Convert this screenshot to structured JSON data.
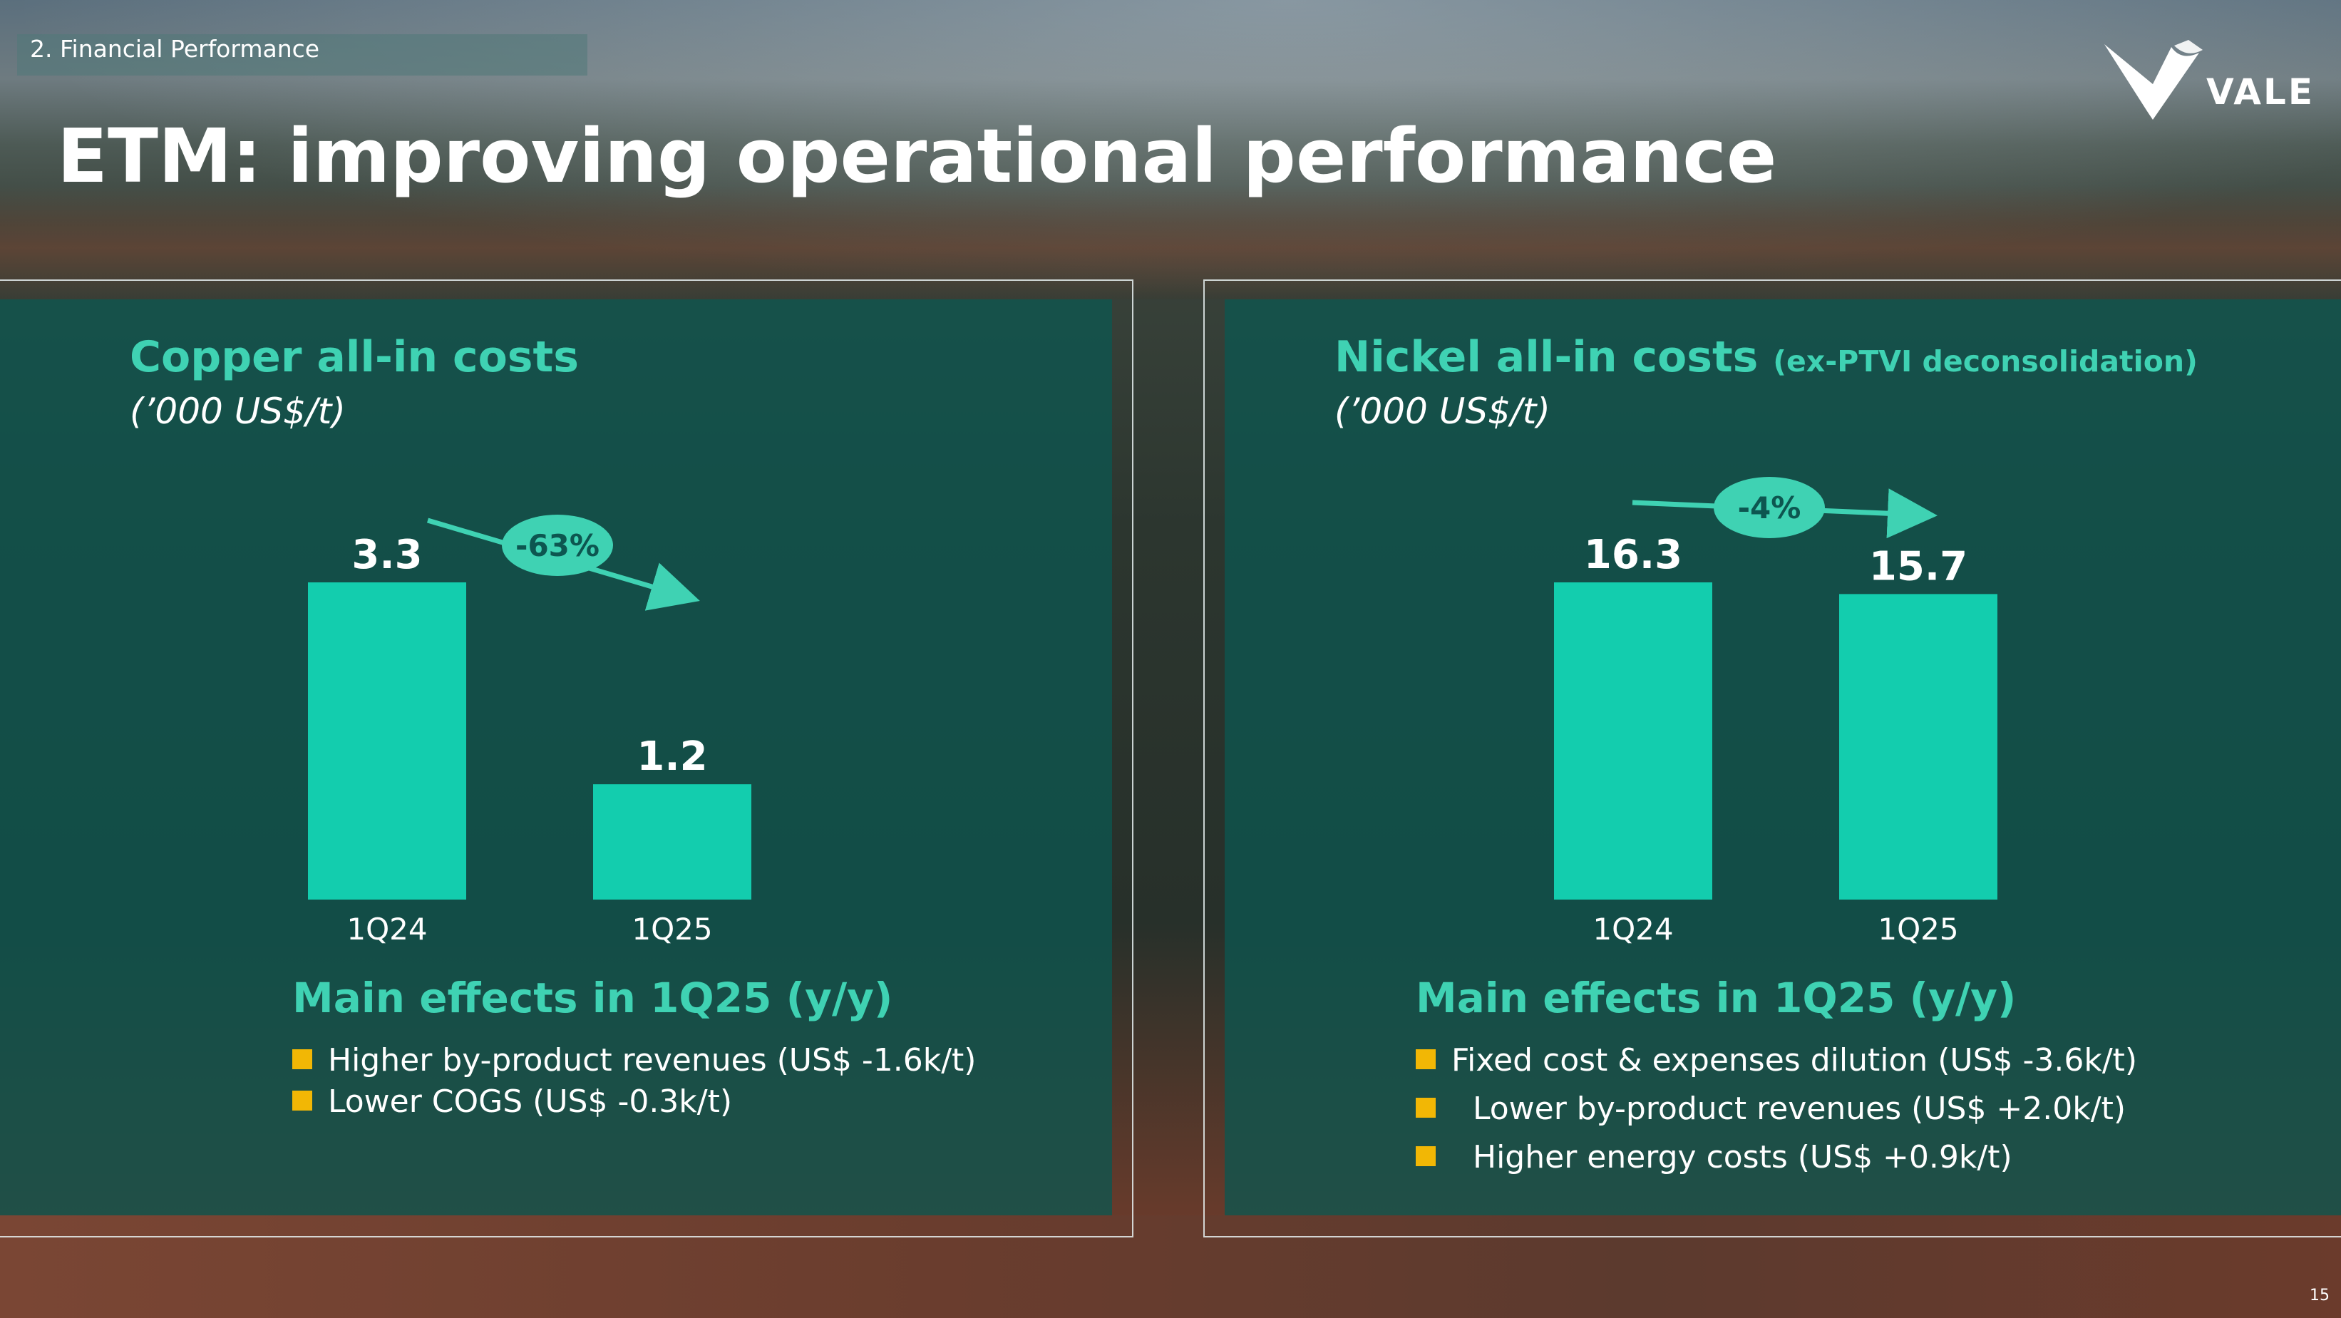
{
  "section": "2. Financial Performance",
  "logo_text": "VALE",
  "title": "ETM: improving operational performance",
  "page_number": "15",
  "colors": {
    "bar": "#13cdae",
    "accent": "#3fd2b3",
    "bullet": "#f2b705",
    "panel": "#0d5650"
  },
  "chart_data": [
    {
      "type": "bar",
      "title": "Copper all-in costs",
      "unit": "(’000 US$/t)",
      "categories": [
        "1Q24",
        "1Q25"
      ],
      "values": [
        3.3,
        1.2
      ],
      "value_labels": [
        "3.3",
        "1.2"
      ],
      "change_label": "-63%",
      "ylim": [
        0,
        3.3
      ],
      "legend": "none",
      "grid": false
    },
    {
      "type": "bar",
      "title": "Nickel all-in costs",
      "title_note": "(ex-PTVI deconsolidation)",
      "unit": "(’000 US$/t)",
      "categories": [
        "1Q24",
        "1Q25"
      ],
      "values": [
        16.3,
        15.7
      ],
      "value_labels": [
        "16.3",
        "15.7"
      ],
      "change_label": "-4%",
      "ylim": [
        0,
        16.3
      ],
      "legend": "none",
      "grid": false
    }
  ],
  "copper_effects": {
    "title": "Main effects in 1Q25 (y/y)",
    "items": [
      "Higher by-product revenues (US$ -1.6k/t)",
      "Lower COGS (US$ -0.3k/t)"
    ]
  },
  "nickel_effects": {
    "title": "Main effects in 1Q25 (y/y)",
    "items": [
      "Fixed cost & expenses dilution (US$ -3.6k/t)",
      "Lower by-product revenues (US$ +2.0k/t)",
      "Higher energy costs (US$ +0.9k/t)"
    ]
  }
}
